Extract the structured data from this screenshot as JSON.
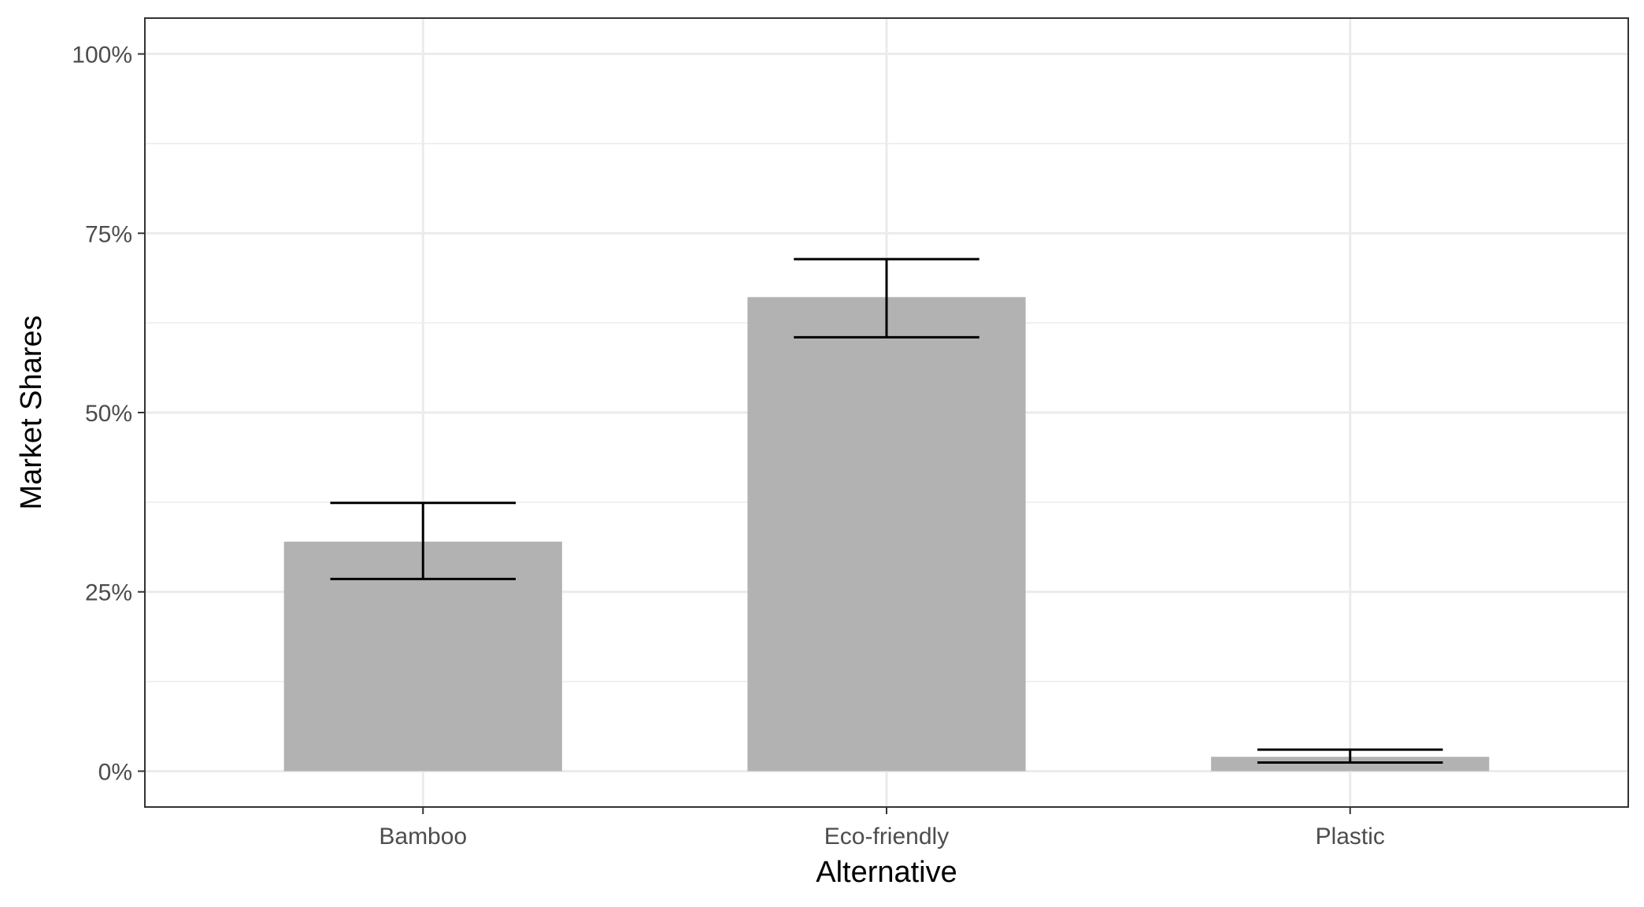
{
  "chart_data": {
    "type": "bar",
    "title": "",
    "xlabel": "Alternative",
    "ylabel": "Market Shares",
    "categories": [
      "Bamboo",
      "Eco-friendly",
      "Plastic"
    ],
    "values": [
      0.32,
      0.661,
      0.02
    ],
    "error_low": [
      0.268,
      0.605,
      0.012
    ],
    "error_high": [
      0.374,
      0.714,
      0.03
    ],
    "ylim": [
      -0.05,
      1.05
    ],
    "y_ticks": [
      0,
      0.25,
      0.5,
      0.75,
      1.0
    ],
    "y_tick_labels": [
      "0%",
      "25%",
      "50%",
      "75%",
      "100%"
    ],
    "grid": true,
    "legend": "none",
    "colors": {
      "bar": "#b2b2b2",
      "error_bar": "#000000",
      "grid": "#ebebeb",
      "panel_border": "#333333",
      "tick_label": "#4d4d4d"
    }
  }
}
